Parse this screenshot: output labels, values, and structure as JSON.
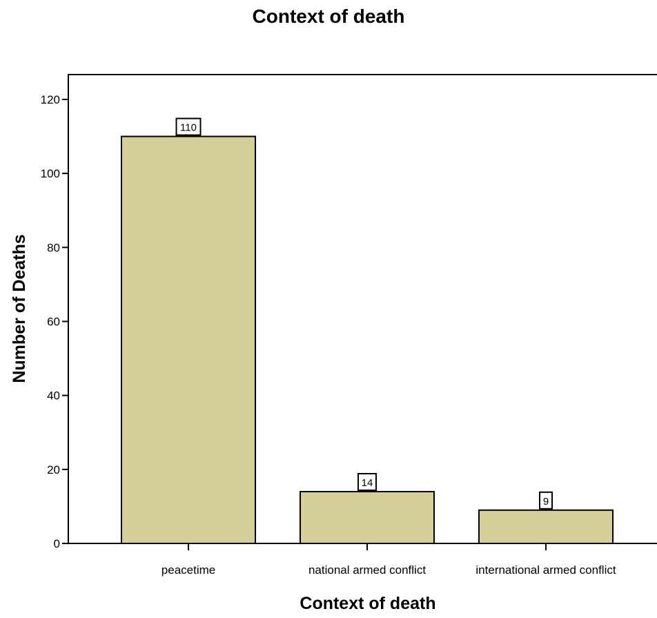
{
  "chart_data": {
    "type": "bar",
    "title": "Context of death",
    "xlabel": "Context of death",
    "ylabel": "Number of Deaths",
    "categories": [
      "peacetime",
      "national armed conflict",
      "international armed conflict"
    ],
    "values": [
      110,
      14,
      9
    ],
    "data_labels": [
      "110",
      "14",
      "9"
    ],
    "ylim": [
      0,
      120
    ],
    "yticks": [
      0,
      20,
      40,
      60,
      80,
      100,
      120
    ],
    "bar_color": "#d6cf9a",
    "grid": false,
    "legend": "none"
  }
}
